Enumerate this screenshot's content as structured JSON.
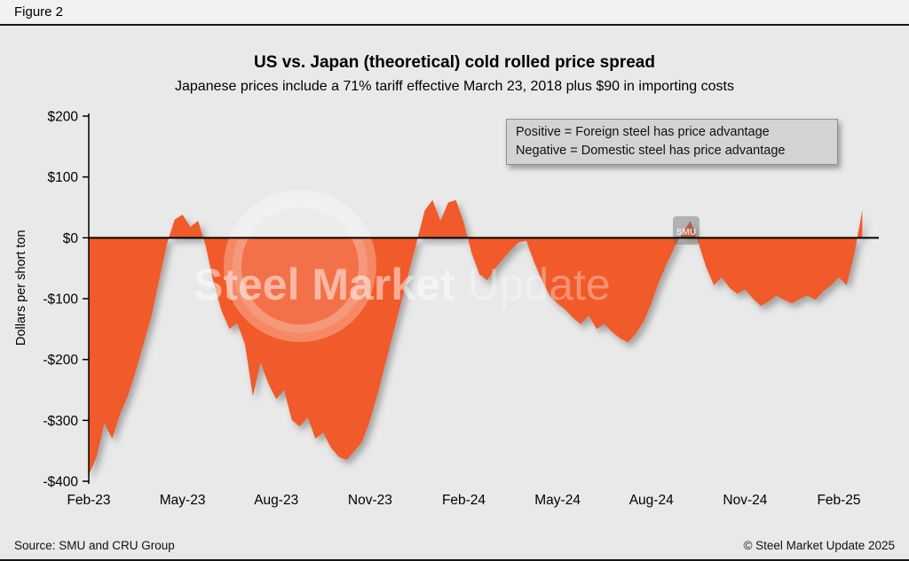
{
  "figure_label": "Figure 2",
  "title": "US vs. Japan (theoretical) cold rolled price spread",
  "subtitle": "Japanese prices include a 71% tariff effective March 23, 2018 plus $90 in importing costs",
  "legend": {
    "line1": "Positive = Foreign steel has price advantage",
    "line2": "Negative = Domestic steel has price advantage"
  },
  "watermark": {
    "part1": "Steel Market",
    "part2": "Update",
    "badge": "SMU"
  },
  "footer": {
    "source": "Source: SMU and CRU Group",
    "copyright": "© Steel Market Update 2025"
  },
  "chart_data": {
    "type": "area",
    "title": "US vs. Japan (theoretical) cold rolled price spread",
    "subtitle": "Japanese prices include a 71% tariff effective March 23, 2018 plus $90 in importing costs",
    "xlabel": "",
    "ylabel": "Dollars per short ton",
    "ylim": [
      -400,
      200
    ],
    "grid": false,
    "fill_color": "#F15A29",
    "background_color": "#E9E9E9",
    "legend_bg_color": "#D3D3D3",
    "ytick_values": [
      200,
      100,
      0,
      -100,
      -200,
      -300,
      -400
    ],
    "ytick_labels": [
      "$200",
      "$100",
      "$0",
      "-$100",
      "-$200",
      "-$300",
      "-$400"
    ],
    "xtick_labels": [
      "Feb-23",
      "May-23",
      "Aug-23",
      "Nov-23",
      "Feb-24",
      "May-24",
      "Aug-24",
      "Nov-24",
      "Feb-25"
    ],
    "xtick_indices": [
      0,
      12,
      24,
      36,
      48,
      60,
      72,
      84,
      96
    ],
    "x_note": "approximately weekly data, index 0 = early Feb 2023, 4 points per month, series ends early Mar 2025",
    "values": [
      -390,
      -360,
      -305,
      -330,
      -290,
      -260,
      -220,
      -175,
      -130,
      -70,
      -10,
      30,
      38,
      18,
      28,
      -15,
      -75,
      -120,
      -150,
      -140,
      -175,
      -260,
      -205,
      -240,
      -265,
      -250,
      -300,
      -310,
      -295,
      -330,
      -320,
      -345,
      -360,
      -365,
      -350,
      -335,
      -300,
      -255,
      -205,
      -155,
      -105,
      -55,
      -5,
      45,
      62,
      28,
      58,
      62,
      25,
      -25,
      -60,
      -70,
      -50,
      -35,
      -20,
      -8,
      -5,
      -40,
      -70,
      -95,
      -108,
      -118,
      -132,
      -142,
      -128,
      -150,
      -142,
      -155,
      -165,
      -172,
      -158,
      -138,
      -108,
      -72,
      -42,
      -15,
      8,
      28,
      -8,
      -48,
      -78,
      -65,
      -82,
      -92,
      -85,
      -100,
      -112,
      -105,
      -95,
      -102,
      -108,
      -100,
      -95,
      -102,
      -88,
      -78,
      -65,
      -78,
      -25,
      45
    ]
  }
}
